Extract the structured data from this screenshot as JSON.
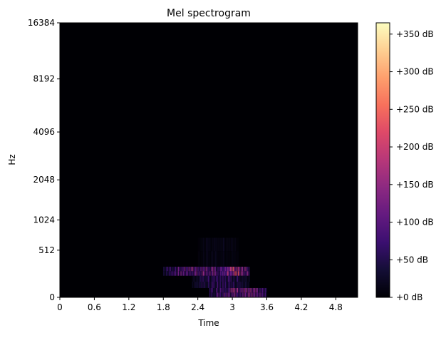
{
  "chart_data": {
    "type": "heatmap",
    "title": "Mel spectrogram",
    "xlabel": "Time",
    "ylabel": "Hz",
    "x_ticks": [
      "0",
      "0.6",
      "1.2",
      "1.8",
      "2.4",
      "3",
      "3.6",
      "4.2",
      "4.8"
    ],
    "x_tick_values": [
      0,
      0.6,
      1.2,
      1.8,
      2.4,
      3.0,
      3.6,
      4.2,
      4.8
    ],
    "xlim": [
      0,
      5.18
    ],
    "y_ticks": [
      "0",
      "512",
      "1024",
      "2048",
      "4096",
      "8192",
      "16384"
    ],
    "y_tick_values": [
      0,
      512,
      1024,
      2048,
      4096,
      8192,
      16384
    ],
    "y_scale": "mel",
    "ylim": [
      0,
      16384
    ],
    "colorbar": {
      "colormap": "magma",
      "range_db": [
        0,
        365
      ],
      "tick_labels": [
        "+0 dB",
        "+50 dB",
        "+100 dB",
        "+150 dB",
        "+200 dB",
        "+250 dB",
        "+300 dB",
        "+350 dB"
      ],
      "tick_values": [
        0,
        50,
        100,
        150,
        200,
        250,
        300,
        350
      ]
    },
    "energy_regions": [
      {
        "time_start": 1.8,
        "time_end": 3.0,
        "freq_low": 200,
        "freq_high": 300,
        "peak_db": 160
      },
      {
        "time_start": 2.6,
        "time_end": 3.6,
        "freq_low": 0,
        "freq_high": 80,
        "peak_db": 180
      },
      {
        "time_start": 2.8,
        "time_end": 3.3,
        "freq_low": 200,
        "freq_high": 300,
        "peak_db": 250
      },
      {
        "time_start": 2.3,
        "time_end": 3.3,
        "freq_low": 80,
        "freq_high": 200,
        "peak_db": 90
      },
      {
        "time_start": 2.4,
        "time_end": 3.1,
        "freq_low": 300,
        "freq_high": 700,
        "peak_db": 25
      }
    ]
  }
}
